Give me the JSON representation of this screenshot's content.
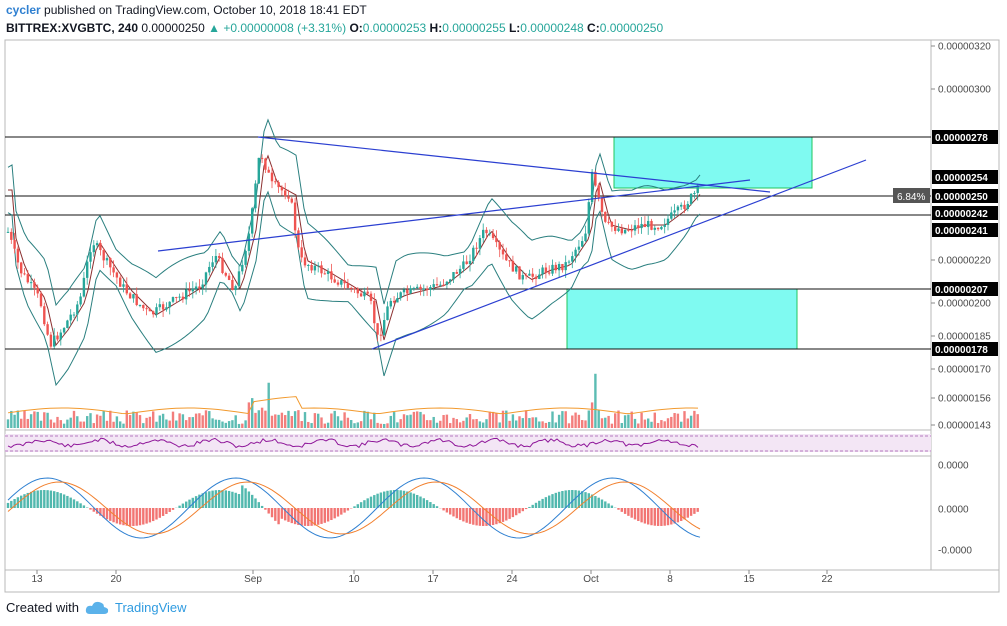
{
  "header": {
    "user": "cycler",
    "published": " published on TradingView.com, October 10, 2018 18:41 EDT",
    "symbol": "BITTREX:XVGBTC, 240",
    "last": "0.00000250",
    "change": "▲ +0.00000008 (+3.31%)",
    "o_label": "O:",
    "o": "0.00000253",
    "h_label": "H:",
    "h": "0.00000255",
    "l_label": "L:",
    "l": "0.00000248",
    "c_label": "C:",
    "c": "0.00000250"
  },
  "footer": {
    "created_with": "Created with",
    "brand": "TradingView"
  },
  "colors": {
    "up": "#26a69a",
    "down": "#ef5350",
    "zone": "#7ffaf1",
    "zone_border": "#22c55e",
    "trendline": "#2b3fd1",
    "bollinger": "#2a7f7f",
    "rsi": "#8e1599"
  },
  "chart_data": {
    "type": "candlestick",
    "y_ticks": [
      "0.00000320",
      "0.00000300",
      "0.00000220",
      "0.00000200",
      "0.00000185",
      "0.00000170",
      "0.00000156",
      "0.00000143"
    ],
    "x_ticks": [
      "13",
      "20",
      "Sep",
      "10",
      "17",
      "24",
      "Oct",
      "8",
      "15",
      "22"
    ],
    "price_labels": [
      {
        "label": "0.00000278",
        "value": 278
      },
      {
        "label": "0.00000254",
        "value": 254
      },
      {
        "label": "0.00000250",
        "value": 250,
        "badge": "6.84%"
      },
      {
        "label": "0.00000242",
        "value": 242
      },
      {
        "label": "0.00000241",
        "value": 241
      },
      {
        "label": "0.00000207",
        "value": 207
      },
      {
        "label": "0.00000178",
        "value": 178
      }
    ],
    "horizontal_levels": [
      278,
      250,
      242,
      207,
      178
    ],
    "macd_ticks": [
      "0.0000",
      "0.0000",
      "-0.0000"
    ],
    "ohlc_last": {
      "open": 253,
      "high": 255,
      "low": 248,
      "close": 250
    }
  }
}
